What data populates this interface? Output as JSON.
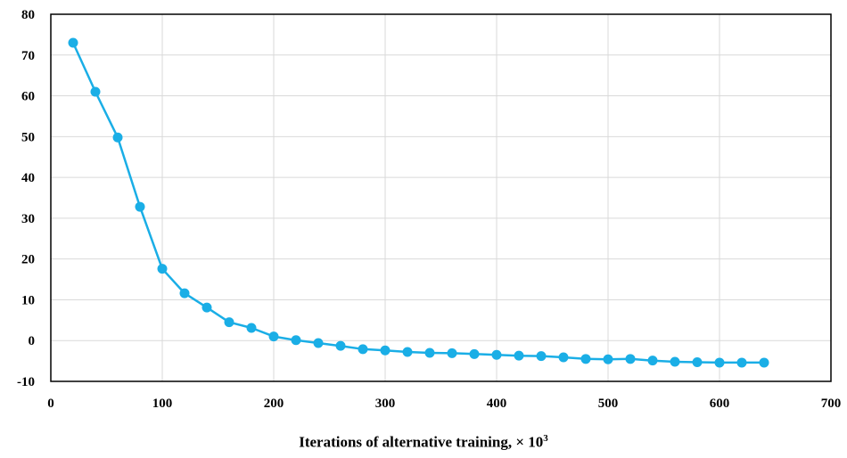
{
  "chart_data": {
    "type": "line",
    "title": "",
    "xlabel": "Iterations of alternative training, × 10",
    "xlabel_superscript": "3",
    "ylabel": "",
    "xlim": [
      0,
      700
    ],
    "ylim": [
      -10,
      80
    ],
    "x_ticks": [
      0,
      100,
      200,
      300,
      400,
      500,
      600,
      700
    ],
    "y_ticks": [
      -10,
      0,
      10,
      20,
      30,
      40,
      50,
      60,
      70,
      80
    ],
    "grid": true,
    "legend": "none",
    "series": [
      {
        "color": "#1AAEE6",
        "marker": "circle",
        "x": [
          20,
          40,
          60,
          80,
          100,
          120,
          140,
          160,
          180,
          200,
          220,
          240,
          260,
          280,
          300,
          320,
          340,
          360,
          380,
          400,
          420,
          440,
          460,
          480,
          500,
          520,
          540,
          560,
          580,
          600,
          620,
          640
        ],
        "y": [
          73,
          61,
          49.8,
          32.8,
          17.6,
          11.6,
          8.1,
          4.5,
          3.1,
          1.0,
          0.1,
          -0.6,
          -1.3,
          -2.1,
          -2.4,
          -2.8,
          -3.0,
          -3.1,
          -3.3,
          -3.5,
          -3.7,
          -3.8,
          -4.1,
          -4.5,
          -4.6,
          -4.5,
          -4.9,
          -5.2,
          -5.3,
          -5.4,
          -5.4,
          -5.4
        ]
      }
    ]
  }
}
